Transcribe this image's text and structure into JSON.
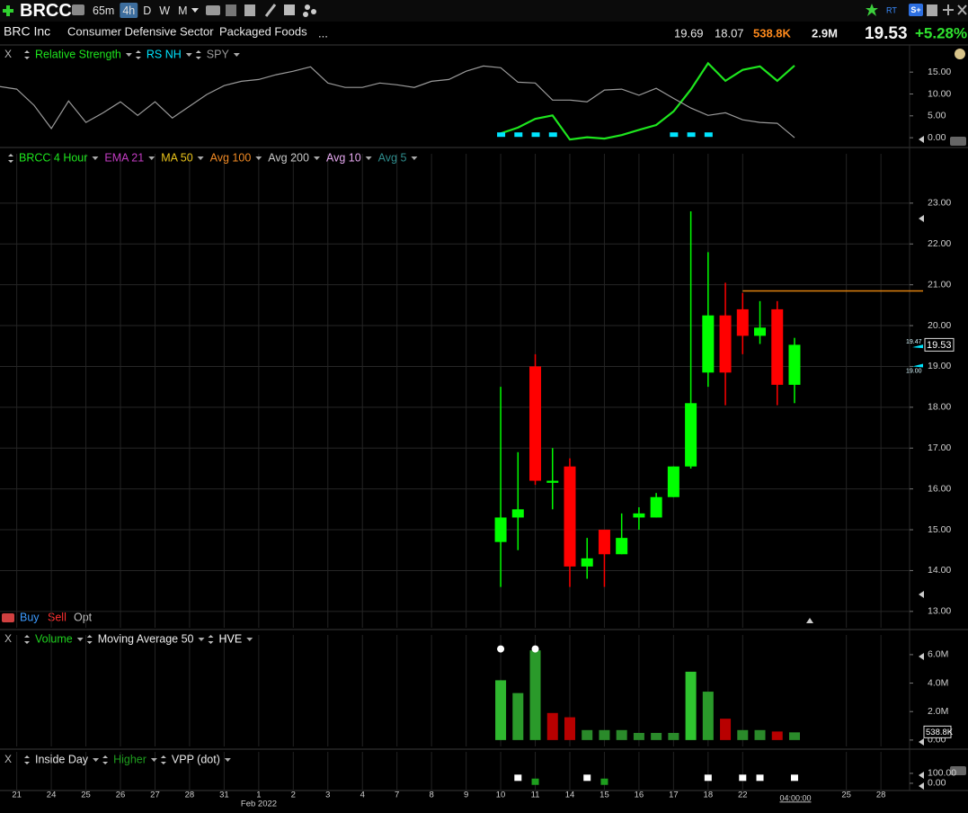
{
  "toolbar": {
    "symbol": "BRCC",
    "intervals": [
      "65m",
      "4h",
      "D",
      "W",
      "M"
    ],
    "active_interval": 1,
    "rt": "RT",
    "s_plus": "S+"
  },
  "quote": {
    "name": "BRC Inc",
    "sector": "Consumer Defensive Sector",
    "industry": "Packaged Foods",
    "more": "...",
    "high": 19.69,
    "low": 18.07,
    "volume": "538.8K",
    "avg_volume": "2.9M",
    "last": 19.53,
    "change": "+5.28%"
  },
  "trade_buttons": [
    "Buy",
    "Sell",
    "Opt"
  ],
  "month_label": "Feb 2022",
  "time_label": "04:00:00",
  "chart_data": [
    {
      "type": "line",
      "close_label": "X",
      "ylim": [
        -1,
        17.5
      ],
      "grid": false,
      "yticks": [
        {
          "value": 15,
          "label": "15.00"
        },
        {
          "value": 10,
          "label": "10.00"
        },
        {
          "value": 5,
          "label": "5.00"
        },
        {
          "value": 0,
          "label": "0.00"
        }
      ],
      "series": [
        {
          "name": "Relative Strength",
          "color": "#1ee61e",
          "values": [
            null,
            null,
            null,
            null,
            null,
            null,
            null,
            null,
            null,
            null,
            null,
            null,
            null,
            null,
            null,
            null,
            null,
            null,
            null,
            null,
            null,
            null,
            null,
            null,
            null,
            null,
            null,
            null,
            null,
            1.0,
            2.3,
            4.3,
            5.1,
            -0.4,
            0.1,
            -0.2,
            0.6,
            1.8,
            2.9,
            6.0,
            11.0,
            17.0,
            13.0,
            15.5,
            16.3,
            13.0,
            16.5,
            null,
            null,
            null,
            null,
            null
          ]
        },
        {
          "name": "RS NH",
          "color": "#00e5ff",
          "marker": "square",
          "values": [
            null,
            null,
            null,
            null,
            null,
            null,
            null,
            null,
            null,
            null,
            null,
            null,
            null,
            null,
            null,
            null,
            null,
            null,
            null,
            null,
            null,
            null,
            null,
            null,
            null,
            null,
            null,
            null,
            null,
            0.6,
            0.6,
            0.6,
            0.6,
            null,
            null,
            null,
            null,
            null,
            null,
            0.6,
            0.6,
            0.6,
            null,
            null,
            null,
            null,
            null,
            null,
            null,
            null,
            null,
            null
          ]
        },
        {
          "name": "SPY",
          "color": "#9a9a9a",
          "values": [
            11.7,
            11.1,
            7.4,
            2.1,
            8.4,
            3.5,
            5.7,
            8.2,
            5.1,
            8.2,
            4.5,
            7.2,
            9.9,
            11.9,
            12.9,
            13.3,
            14.4,
            15.2,
            16.2,
            12.5,
            11.5,
            11.5,
            12.5,
            12.1,
            11.5,
            12.9,
            13.3,
            15.2,
            16.4,
            16.0,
            12.7,
            12.5,
            8.6,
            8.6,
            8.2,
            10.9,
            11.1,
            9.7,
            11.3,
            9.0,
            6.8,
            5.1,
            5.7,
            4.1,
            3.5,
            3.3,
            0,
            null,
            null,
            null,
            null,
            null
          ]
        }
      ]
    },
    {
      "type": "candlestick",
      "title": "BRCC 4 Hour",
      "ylim": [
        12.6,
        23.9
      ],
      "grid": true,
      "categories": [
        null,
        "21",
        null,
        "24",
        null,
        "25",
        null,
        "26",
        null,
        "27",
        null,
        "28",
        null,
        "31",
        null,
        "1",
        null,
        "2",
        null,
        "3",
        null,
        "4",
        null,
        "7",
        null,
        "8",
        null,
        "9",
        null,
        "10",
        null,
        "11",
        null,
        "14",
        null,
        "15",
        null,
        "16",
        null,
        "17",
        null,
        "18",
        null,
        "22",
        null,
        null,
        null,
        null,
        null,
        "25",
        null,
        "28"
      ],
      "yticks": [
        {
          "value": 13,
          "label": "13.00"
        },
        {
          "value": 14,
          "label": "14.00"
        },
        {
          "value": 15,
          "label": "15.00"
        },
        {
          "value": 16,
          "label": "16.00"
        },
        {
          "value": 17,
          "label": "17.00"
        },
        {
          "value": 18,
          "label": "18.00"
        },
        {
          "value": 19,
          "label": "19.00"
        },
        {
          "value": 20,
          "label": "20.00"
        },
        {
          "value": 21,
          "label": "21.00"
        },
        {
          "value": 22,
          "label": "22.00"
        },
        {
          "value": 23,
          "label": "23.00"
        }
      ],
      "indicators": [
        {
          "name": "EMA 21",
          "color": "#c23bc2"
        },
        {
          "name": "MA 50",
          "color": "#e8c21a"
        },
        {
          "name": "Avg 100",
          "color": "#f08a24"
        },
        {
          "name": "Avg 200",
          "color": "#c8c8c8"
        },
        {
          "name": "Avg 10",
          "color": "#e6a8f0"
        },
        {
          "name": "Avg 5",
          "color": "#2e8c8c"
        }
      ],
      "up_color": "#00ff00",
      "down_color": "#ff0000",
      "series": [
        {
          "name": "BRCC",
          "open": [
            null,
            null,
            null,
            null,
            null,
            null,
            null,
            null,
            null,
            null,
            null,
            null,
            null,
            null,
            null,
            null,
            null,
            null,
            null,
            null,
            null,
            null,
            null,
            null,
            null,
            null,
            null,
            null,
            null,
            14.7,
            15.3,
            19.0,
            16.15,
            16.55,
            14.1,
            15.0,
            14.4,
            15.3,
            15.3,
            15.8,
            16.55,
            18.85,
            20.25,
            20.4,
            19.75,
            20.4,
            18.55,
            null,
            null,
            null,
            null,
            null
          ],
          "high": [
            null,
            null,
            null,
            null,
            null,
            null,
            null,
            null,
            null,
            null,
            null,
            null,
            null,
            null,
            null,
            null,
            null,
            null,
            null,
            null,
            null,
            null,
            null,
            null,
            null,
            null,
            null,
            null,
            null,
            18.5,
            16.9,
            19.3,
            17.0,
            16.75,
            14.8,
            15.0,
            15.4,
            15.55,
            15.9,
            16.55,
            22.8,
            21.8,
            21.05,
            20.8,
            20.6,
            20.6,
            19.7,
            null,
            null,
            null,
            null,
            null
          ],
          "low": [
            null,
            null,
            null,
            null,
            null,
            null,
            null,
            null,
            null,
            null,
            null,
            null,
            null,
            null,
            null,
            null,
            null,
            null,
            null,
            null,
            null,
            null,
            null,
            null,
            null,
            null,
            null,
            null,
            null,
            13.6,
            14.5,
            16.1,
            15.5,
            13.6,
            13.8,
            13.6,
            14.4,
            15.0,
            15.3,
            15.8,
            16.5,
            18.5,
            18.05,
            19.3,
            19.55,
            18.05,
            18.1,
            null,
            null,
            null,
            null,
            null
          ],
          "close": [
            null,
            null,
            null,
            null,
            null,
            null,
            null,
            null,
            null,
            null,
            null,
            null,
            null,
            null,
            null,
            null,
            null,
            null,
            null,
            null,
            null,
            null,
            null,
            null,
            null,
            null,
            null,
            null,
            null,
            15.3,
            15.5,
            16.2,
            16.2,
            14.1,
            14.3,
            14.4,
            14.8,
            15.4,
            15.8,
            16.55,
            18.1,
            20.25,
            18.85,
            19.75,
            19.95,
            18.55,
            19.53,
            null,
            null,
            null,
            null,
            null
          ]
        }
      ],
      "level": {
        "value": 20.85,
        "color": "#e0820e"
      },
      "price_markers": [
        {
          "value": 19.47,
          "label": "19.47",
          "color": "#00e5ff"
        },
        {
          "value": 19.53,
          "label": "19.53"
        },
        {
          "value": 19.0,
          "label": "19.00",
          "color": "#00e5ff"
        }
      ]
    },
    {
      "type": "bar",
      "close_label": "X",
      "ylim": [
        -0.45,
        6.5
      ],
      "grid": false,
      "yticks": [
        {
          "value": 6,
          "label": "6.0M"
        },
        {
          "value": 4,
          "label": "4.0M"
        },
        {
          "value": 2,
          "label": "2.0M"
        },
        {
          "value": 0,
          "label": "0.00"
        }
      ],
      "indicators": [
        {
          "name": "Moving Average 50",
          "color": "#e8e8e8"
        }
      ],
      "series": [
        {
          "name": "Volume",
          "color": "#1fd11f",
          "values": [
            null,
            null,
            null,
            null,
            null,
            null,
            null,
            null,
            null,
            null,
            null,
            null,
            null,
            null,
            null,
            null,
            null,
            null,
            null,
            null,
            null,
            null,
            null,
            null,
            null,
            null,
            null,
            null,
            null,
            4.2,
            3.3,
            6.3,
            1.9,
            1.6,
            0.7,
            0.7,
            0.7,
            0.5,
            0.5,
            0.5,
            4.8,
            3.4,
            1.5,
            0.7,
            0.7,
            0.6,
            0.54,
            null,
            null,
            null,
            null,
            null
          ],
          "colors": [
            null,
            null,
            null,
            null,
            null,
            null,
            null,
            null,
            null,
            null,
            null,
            null,
            null,
            null,
            null,
            null,
            null,
            null,
            null,
            null,
            null,
            null,
            null,
            null,
            null,
            null,
            null,
            null,
            null,
            "#2fb82f",
            "#2a9a2a",
            "#2a9a2a",
            "#b80000",
            "#b80000",
            "#2a8a2a",
            "#2a8a2a",
            "#2a8a2a",
            "#2a8a2a",
            "#2a8a2a",
            "#2a8a2a",
            "#2fc42f",
            "#2a9a2a",
            "#b80000",
            "#2a8a2a",
            "#2a8a2a",
            "#b80000",
            "#2a8a2a",
            null,
            null,
            null,
            null,
            null
          ]
        },
        {
          "name": "HVE",
          "color": "#ffffff",
          "marker": "circle",
          "values": [
            null,
            null,
            null,
            null,
            null,
            null,
            null,
            null,
            null,
            null,
            null,
            null,
            null,
            null,
            null,
            null,
            null,
            null,
            null,
            null,
            null,
            null,
            null,
            null,
            null,
            null,
            null,
            null,
            null,
            6.4,
            null,
            6.4,
            null,
            null,
            null,
            null,
            null,
            null,
            null,
            null,
            null,
            null,
            null,
            null,
            null,
            null,
            null,
            null,
            null,
            null,
            null,
            null
          ]
        }
      ],
      "current": {
        "value": 0.5388,
        "label": "538.8K"
      }
    },
    {
      "type": "scatter",
      "close_label": "X",
      "ylim": [
        -64,
        190
      ],
      "grid": false,
      "yticks": [
        {
          "value": 100,
          "label": "100.00"
        },
        {
          "value": 0,
          "label": "0.00"
        }
      ],
      "indicators": [
        {
          "name": "VPP (dot)",
          "color": "#e8e8e8"
        }
      ],
      "series": [
        {
          "name": "Inside Day",
          "color": "#ffffff",
          "marker": "square",
          "values": [
            null,
            null,
            null,
            null,
            null,
            null,
            null,
            null,
            null,
            null,
            null,
            null,
            null,
            null,
            null,
            null,
            null,
            null,
            null,
            null,
            null,
            null,
            null,
            null,
            null,
            null,
            null,
            null,
            null,
            null,
            60,
            null,
            null,
            null,
            60,
            null,
            null,
            null,
            null,
            null,
            null,
            60,
            null,
            60,
            60,
            null,
            60,
            null,
            null,
            null,
            null,
            null
          ]
        },
        {
          "name": "Higher",
          "color": "#1e9e1e",
          "marker": "square",
          "values": [
            null,
            null,
            null,
            null,
            null,
            null,
            null,
            null,
            null,
            null,
            null,
            null,
            null,
            null,
            null,
            null,
            null,
            null,
            null,
            null,
            null,
            null,
            null,
            null,
            null,
            null,
            null,
            null,
            null,
            null,
            null,
            20,
            null,
            null,
            null,
            20,
            null,
            null,
            null,
            null,
            null,
            null,
            null,
            null,
            null,
            null,
            null,
            null,
            null,
            null,
            null,
            null
          ]
        }
      ]
    }
  ]
}
